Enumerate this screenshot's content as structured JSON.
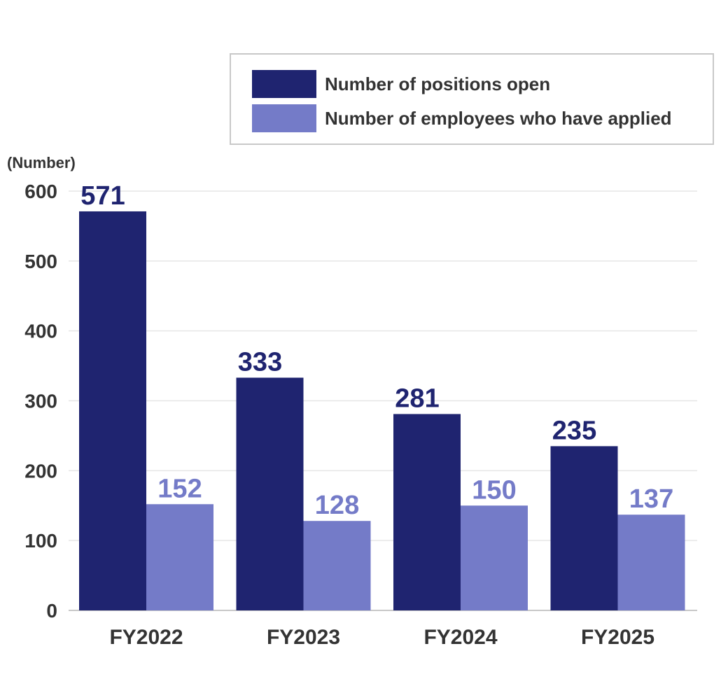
{
  "chart_data": {
    "type": "bar",
    "categories": [
      "FY2022",
      "FY2023",
      "FY2024",
      "FY2025"
    ],
    "series": [
      {
        "name": "Number of positions open",
        "values": [
          571,
          333,
          281,
          235
        ],
        "color": "#1f2470"
      },
      {
        "name": "Number of employees who have applied",
        "values": [
          152,
          128,
          150,
          137
        ],
        "color": "#747bc8"
      }
    ],
    "ylabel": "(Number)",
    "ylim": [
      0,
      600
    ],
    "yticks": [
      0,
      100,
      200,
      300,
      400,
      500,
      600
    ],
    "grid": true,
    "legend": "top-right"
  },
  "colors": {
    "grid": "#e6e6e6",
    "axis": "#c8c8c8",
    "tick_text": "#333333"
  }
}
